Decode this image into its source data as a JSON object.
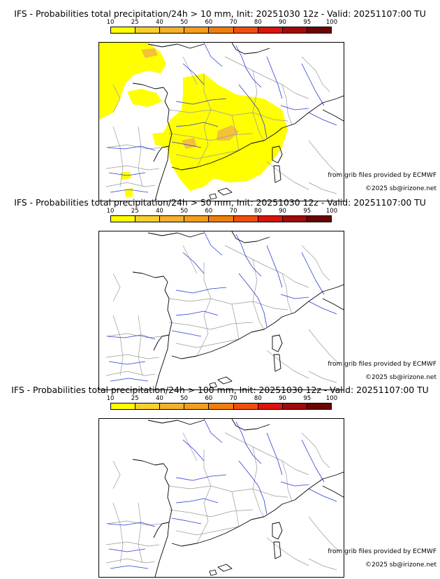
{
  "colorbar": {
    "ticks": [
      "10",
      "25",
      "40",
      "50",
      "60",
      "70",
      "80",
      "90",
      "95",
      "100"
    ],
    "colors": [
      "#ffff00",
      "#f7cf2e",
      "#f3b12c",
      "#f39e1e",
      "#ee7e0e",
      "#f04e0e",
      "#d8140e",
      "#a00a0a",
      "#6a0606"
    ]
  },
  "panels": [
    {
      "title": "IFS - Probabilities total precipitation/24h > 10 mm, Init: 20251030 12z - Valid: 20251107:00 TU",
      "source_credit": "from grib files provided by ECMWF",
      "copyright": "©2025 sb@irizone.net"
    },
    {
      "title": "IFS - Probabilities total precipitation/24h > 50 mm, Init: 20251030 12z - Valid: 20251107:00 TU",
      "source_credit": "from grib files provided by ECMWF",
      "copyright": "©2025 sb@irizone.net"
    },
    {
      "title": "IFS - Probabilities total precipitation/24h > 100 mm, Init: 20251030 12z - Valid: 20251107:00 TU",
      "source_credit": "from grib files provided by ECMWF",
      "copyright": "©2025 sb@irizone.net"
    }
  ],
  "colors": {
    "coast": "#000000",
    "borders": "#9a9a9a",
    "rivers": "#2b3bd6",
    "prob_low": "#ffff00",
    "prob_mid": "#f3c23a"
  }
}
